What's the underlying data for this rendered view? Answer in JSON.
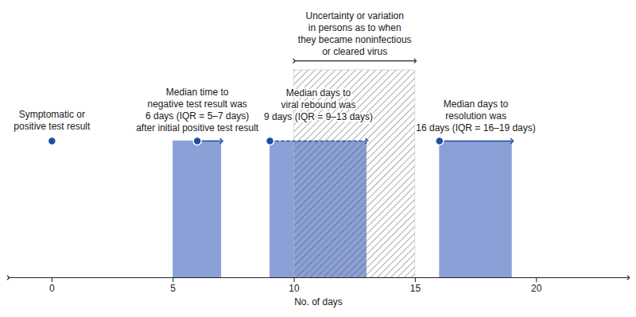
{
  "chart_data": {
    "type": "timeline",
    "xlabel": "No. of days",
    "xlim": [
      -1.8,
      23.8
    ],
    "xticks": [
      0,
      5,
      10,
      15,
      20
    ],
    "tick_labels": "x",
    "color": "#8aa0d6",
    "events": [
      {
        "x": 0,
        "label": "Symptomatic or\npositive test result"
      }
    ],
    "intervals": [
      {
        "label": "Median time to\nnegative test result was\n6 days (IQR = 5–7 days)\nafter initial positive test result",
        "median": 6,
        "low": 5,
        "high": 7,
        "line_style": "solid"
      },
      {
        "label": "Median days to\nviral rebound was\n9 days (IQR = 9–13 days)",
        "median": 9,
        "low": 9,
        "high": 13,
        "line_style": "dashed"
      },
      {
        "label": "Median days to\nresolution was\n16 days (IQR = 16–19 days)",
        "median": 16,
        "low": 16,
        "high": 19,
        "line_style": "solid"
      }
    ],
    "uncertainty": {
      "label": "Uncertainty or variation\nin persons as to when\nthey became noninfectious\nor cleared virus",
      "low": 10,
      "high": 15
    }
  }
}
